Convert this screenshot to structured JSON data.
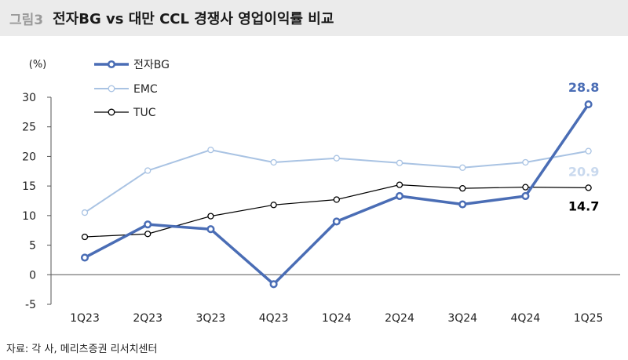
{
  "header": {
    "figure_label": "그림3",
    "title": "전자BG vs 대만 CCL 경쟁사 영업이익률 비교"
  },
  "source": "자료: 각 사, 메리츠증권 리서치센터",
  "chart_data": {
    "type": "line",
    "ylabel": "(%)",
    "ylim": [
      -5,
      30
    ],
    "yticks": [
      -5,
      0,
      5,
      10,
      15,
      20,
      25,
      30
    ],
    "categories": [
      "1Q23",
      "2Q23",
      "3Q23",
      "4Q23",
      "1Q24",
      "2Q24",
      "3Q24",
      "4Q24",
      "1Q25"
    ],
    "legend_position": "top-left",
    "grid": false,
    "series": [
      {
        "name": "전자BG",
        "color": "#4a6db5",
        "values": [
          2.9,
          8.5,
          7.7,
          -1.6,
          9.0,
          13.3,
          11.9,
          13.3,
          28.8
        ],
        "end_label": "28.8"
      },
      {
        "name": "EMC",
        "color": "#a9c3e3",
        "values": [
          10.5,
          17.6,
          21.1,
          19.0,
          19.7,
          18.9,
          18.1,
          19.0,
          20.9
        ],
        "end_label": "20.9"
      },
      {
        "name": "TUC",
        "color": "#000000",
        "values": [
          6.4,
          6.9,
          9.9,
          11.8,
          12.7,
          15.2,
          14.6,
          14.8,
          14.7
        ],
        "end_label": "14.7"
      }
    ]
  }
}
